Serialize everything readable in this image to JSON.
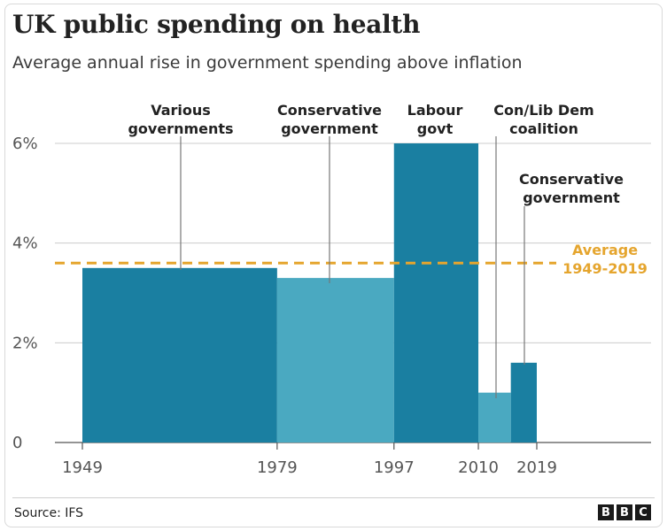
{
  "header": {
    "title": "UK public spending on health",
    "subtitle": "Average annual rise in government spending above inflation"
  },
  "footer": {
    "source": "Source: IFS",
    "logo_letters": [
      "B",
      "B",
      "C"
    ]
  },
  "colors": {
    "dark_blue": "#1a7fa1",
    "light_blue": "#4aa9c1",
    "average_line": "#e5a52e",
    "axis_text": "#555555",
    "label_text": "#222222"
  },
  "chart_data": {
    "type": "bar",
    "title": "UK public spending on health",
    "subtitle": "Average annual rise in government spending above inflation",
    "xlabel": "",
    "ylabel": "",
    "ylim": [
      0,
      6
    ],
    "y_ticks": [
      0,
      2,
      4,
      6
    ],
    "y_tick_labels": [
      "0",
      "2%",
      "4%",
      "6%"
    ],
    "x_ticks": [
      1949,
      1979,
      1997,
      2010,
      2019
    ],
    "x_tick_labels": [
      "1949",
      "1979",
      "1997",
      "2010",
      "2019"
    ],
    "xlim": [
      1949,
      2019
    ],
    "bars": [
      {
        "start": 1949,
        "end": 1979,
        "value": 3.5,
        "label": [
          "Various",
          "governments"
        ],
        "shade": "dark"
      },
      {
        "start": 1979,
        "end": 1997,
        "value": 3.3,
        "label": [
          "Conservative",
          "government"
        ],
        "shade": "light"
      },
      {
        "start": 1997,
        "end": 2010,
        "value": 6.0,
        "label": [
          "Labour",
          "govt"
        ],
        "shade": "dark"
      },
      {
        "start": 2010,
        "end": 2015,
        "value": 1.0,
        "label": [
          "Con/Lib Dem",
          "coalition"
        ],
        "shade": "light"
      },
      {
        "start": 2015,
        "end": 2019,
        "value": 1.6,
        "label": [
          "Conservative",
          "government"
        ],
        "shade": "dark"
      }
    ],
    "average": {
      "value": 3.6,
      "label": [
        "Average",
        "1949-2019"
      ]
    },
    "grid": true,
    "legend": "none"
  }
}
